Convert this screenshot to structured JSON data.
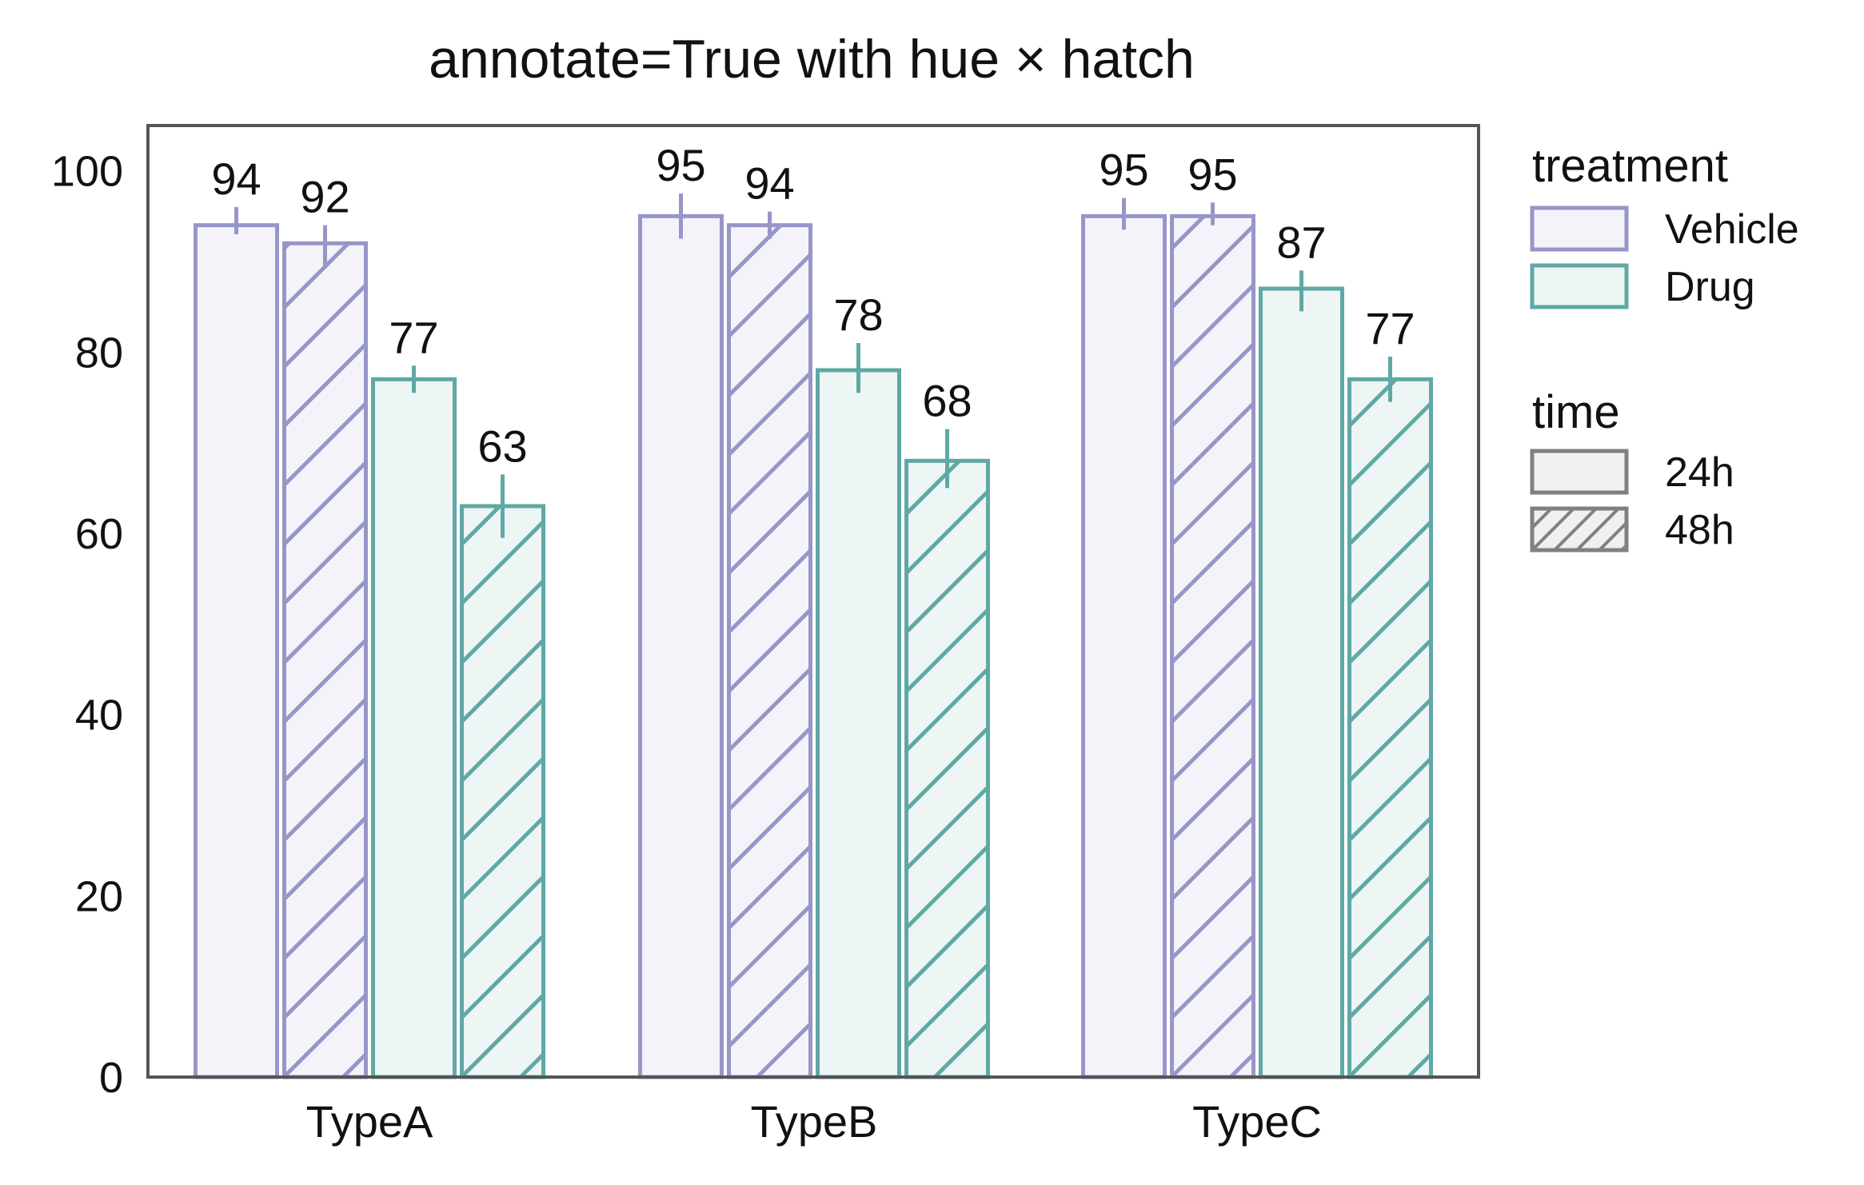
{
  "chart_data": {
    "type": "bar",
    "title": "annotate=True with hue × hatch",
    "xlabel": "",
    "ylabel": "",
    "categories": [
      "TypeA",
      "TypeB",
      "TypeC"
    ],
    "ylim": [
      0,
      105
    ],
    "yticks": [
      0,
      20,
      40,
      60,
      80,
      100
    ],
    "grid": false,
    "series": [
      {
        "name": "Vehicle · 24h",
        "treatment": "Vehicle",
        "time": "24h",
        "values": [
          94,
          95,
          95
        ],
        "err_low": [
          93,
          92.5,
          93.5
        ],
        "err_high": [
          96,
          97.5,
          97
        ],
        "labels": [
          "94",
          "95",
          "95"
        ]
      },
      {
        "name": "Vehicle · 48h",
        "treatment": "Vehicle",
        "time": "48h",
        "values": [
          92,
          94,
          95
        ],
        "err_low": [
          89.5,
          92.5,
          94
        ],
        "err_high": [
          94,
          95.5,
          96.5
        ],
        "labels": [
          "92",
          "94",
          "95"
        ]
      },
      {
        "name": "Drug · 24h",
        "treatment": "Drug",
        "time": "24h",
        "values": [
          77,
          78,
          87
        ],
        "err_low": [
          75.5,
          75.5,
          84.5
        ],
        "err_high": [
          78.5,
          81,
          89
        ],
        "labels": [
          "77",
          "78",
          "87"
        ]
      },
      {
        "name": "Drug · 48h",
        "treatment": "Drug",
        "time": "48h",
        "values": [
          63,
          68,
          77
        ],
        "err_low": [
          59.5,
          65,
          74.5
        ],
        "err_high": [
          66.5,
          71.5,
          79.5
        ],
        "labels": [
          "63",
          "68",
          "77"
        ]
      }
    ],
    "legend": {
      "placement": "outside-right",
      "groups": [
        {
          "title": "treatment",
          "items": [
            {
              "label": "Vehicle",
              "color": "#9696C8"
            },
            {
              "label": "Drug",
              "color": "#5FA8A6"
            }
          ]
        },
        {
          "title": "time",
          "items": [
            {
              "label": "24h",
              "hatch": "none"
            },
            {
              "label": "48h",
              "hatch": "diagonal"
            }
          ]
        }
      ]
    },
    "colors": {
      "Vehicle": {
        "edge": "#9696C8",
        "fill": "#F4F3FA"
      },
      "Drug": {
        "edge": "#5FA8A6",
        "fill": "#EDF6F5"
      },
      "neutral_edge": "#808080",
      "neutral_fill": "#F0F0F0",
      "axes_frame": "#555555"
    }
  }
}
